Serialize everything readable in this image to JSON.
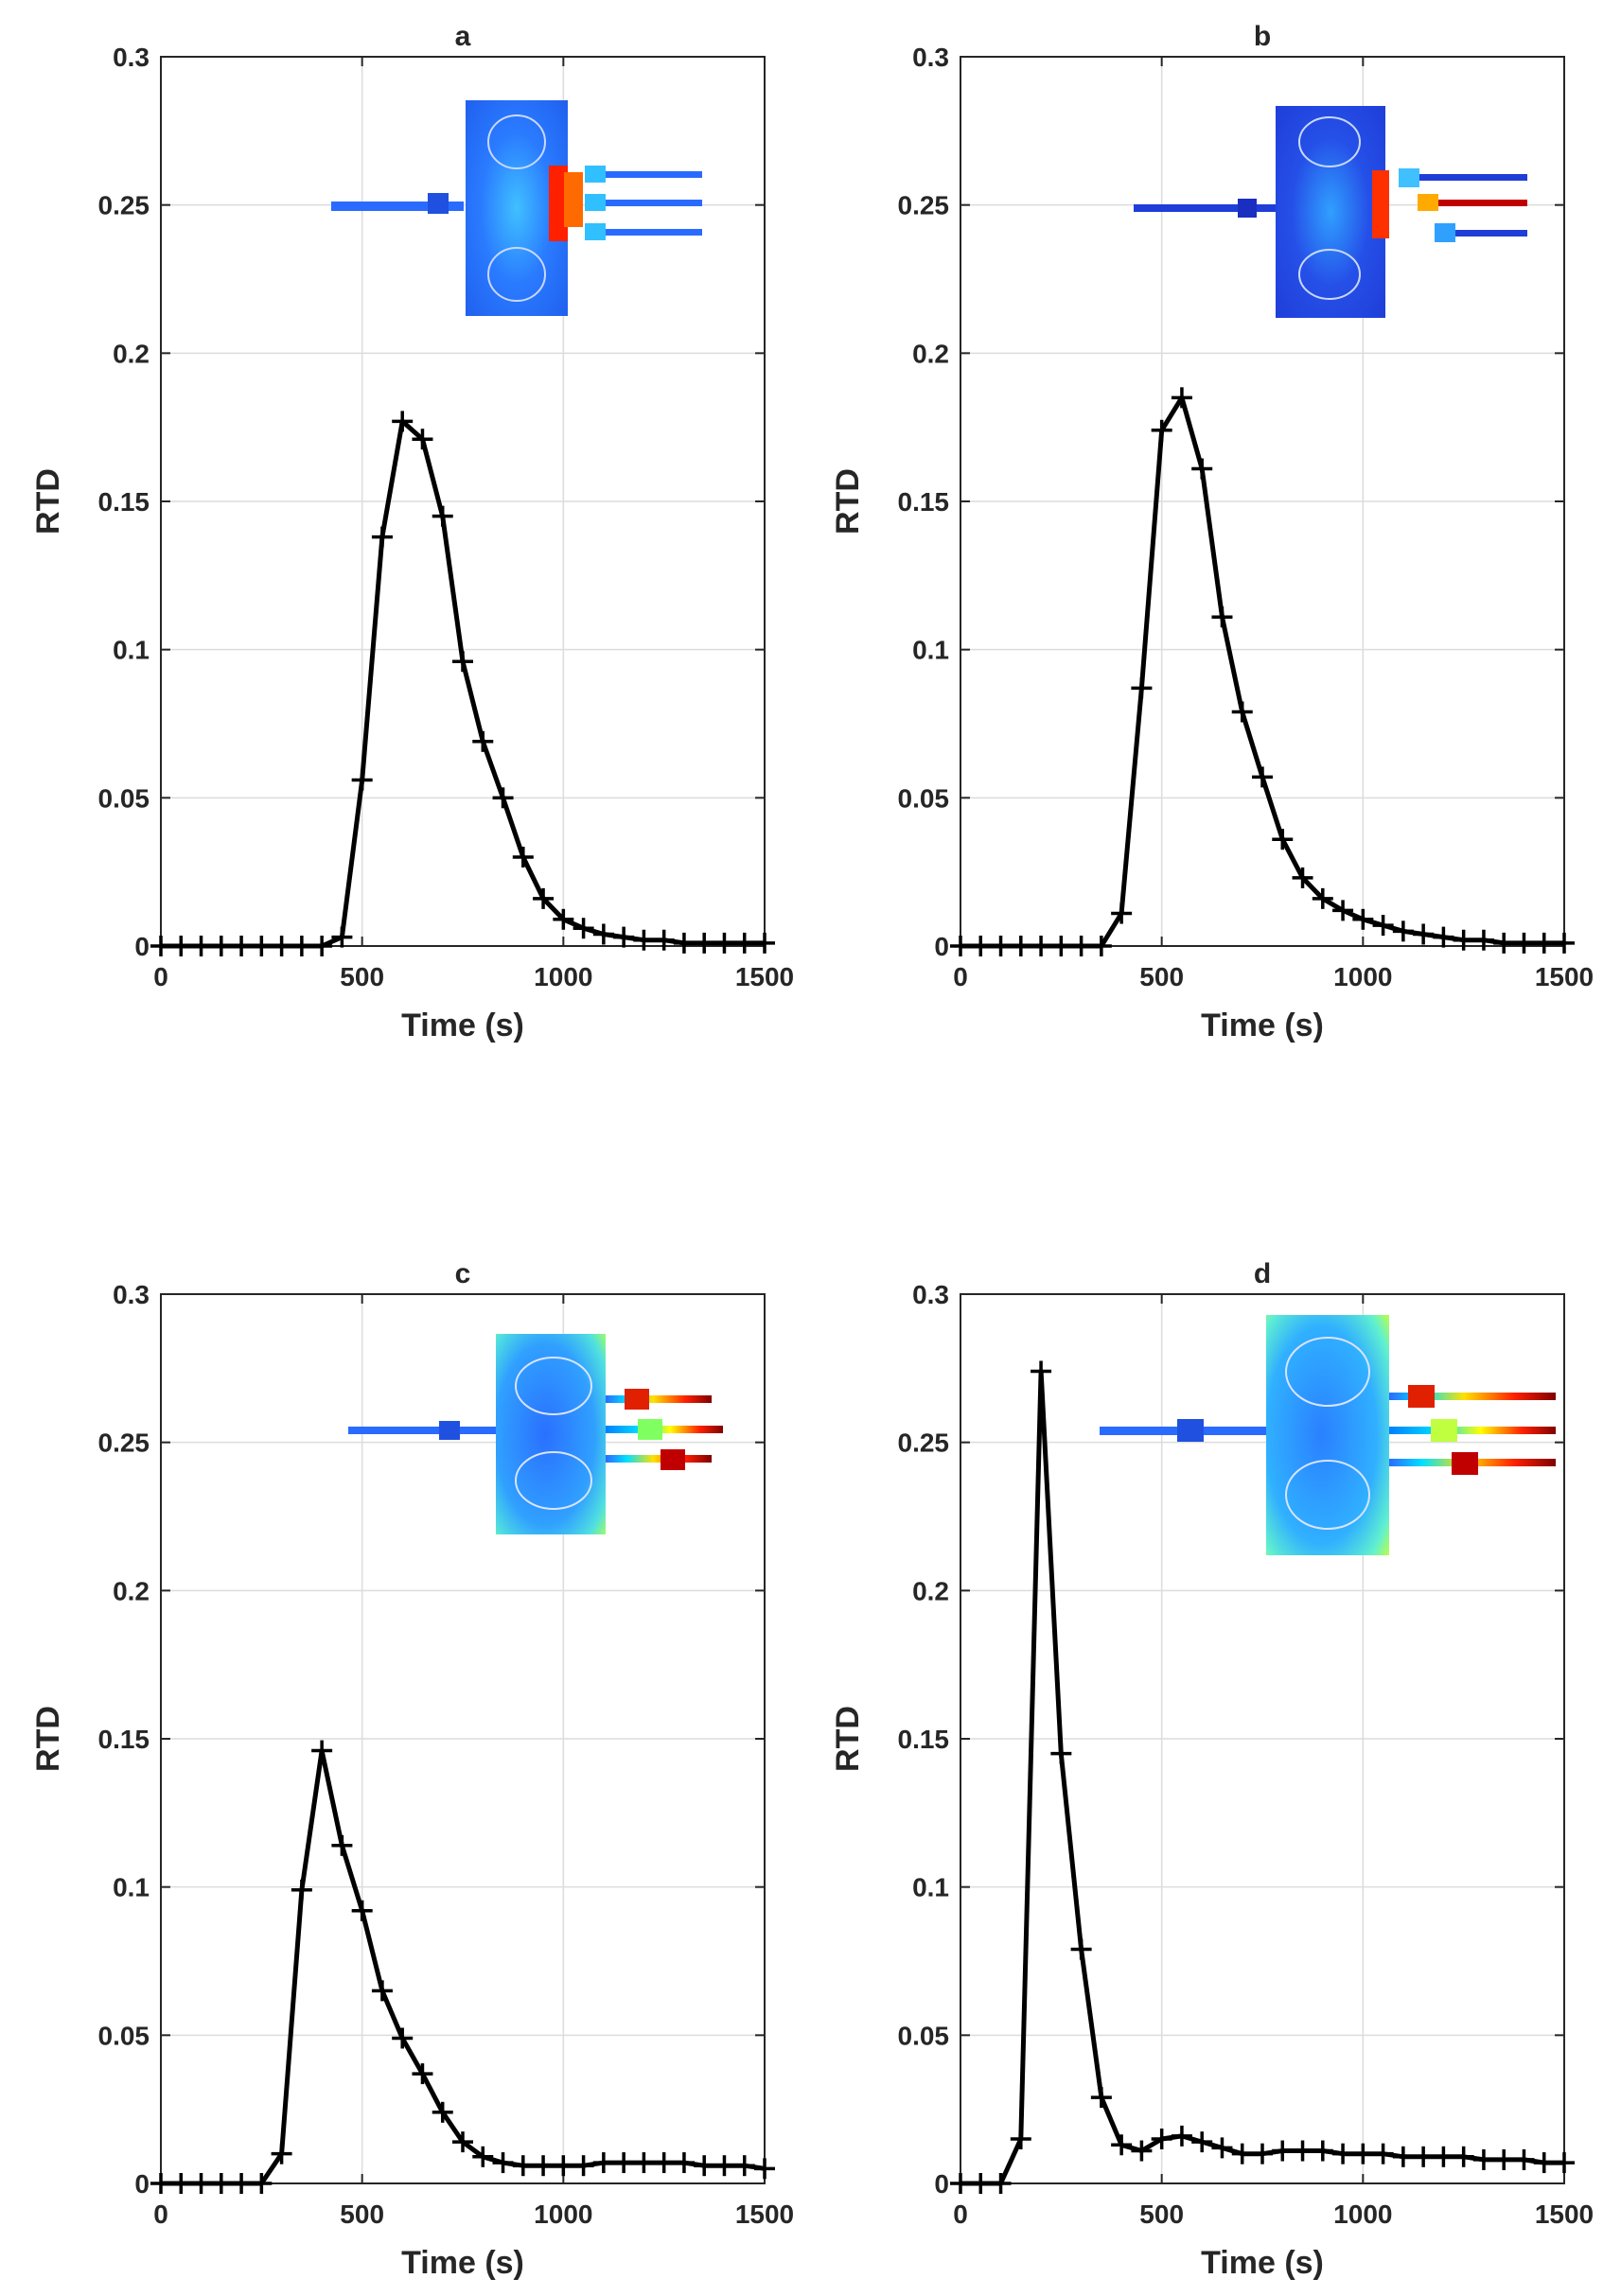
{
  "chart_data": [
    {
      "type": "line",
      "title": "a",
      "xlabel": "Time (s)",
      "ylabel": "RTD",
      "xlim": [
        0,
        1500
      ],
      "ylim": [
        0,
        0.3
      ],
      "xticks": [
        0,
        500,
        1000,
        1500
      ],
      "yticks": [
        0,
        0.05,
        0.1,
        0.15,
        0.2,
        0.25,
        0.3
      ],
      "xtick_labels": [
        "0",
        "500",
        "1000",
        "1500"
      ],
      "ytick_labels": [
        "0",
        "0.05",
        "0.1",
        "0.15",
        "0.2",
        "0.25",
        "0.3"
      ],
      "grid": true,
      "inset": "simulation contour image: inlet pipe on left, rectangular chamber with recirculation vortices, three outlet pipes on right; colour ramp blue to red",
      "series": [
        {
          "name": "RTD",
          "marker": "+",
          "x": [
            0,
            50,
            100,
            150,
            200,
            250,
            300,
            350,
            400,
            450,
            500,
            550,
            600,
            650,
            700,
            750,
            800,
            850,
            900,
            950,
            1000,
            1050,
            1100,
            1150,
            1200,
            1250,
            1300,
            1350,
            1400,
            1450,
            1500
          ],
          "y": [
            0,
            0,
            0,
            0,
            0,
            0,
            0,
            0,
            0,
            0.003,
            0.056,
            0.138,
            0.177,
            0.171,
            0.145,
            0.096,
            0.069,
            0.05,
            0.03,
            0.016,
            0.009,
            0.006,
            0.004,
            0.003,
            0.002,
            0.002,
            0.001,
            0.001,
            0.001,
            0.001,
            0.001
          ]
        }
      ]
    },
    {
      "type": "line",
      "title": "b",
      "xlabel": "Time (s)",
      "ylabel": "RTD",
      "xlim": [
        0,
        1500
      ],
      "ylim": [
        0,
        0.3
      ],
      "xticks": [
        0,
        500,
        1000,
        1500
      ],
      "yticks": [
        0,
        0.05,
        0.1,
        0.15,
        0.2,
        0.25,
        0.3
      ],
      "xtick_labels": [
        "0",
        "500",
        "1000",
        "1500"
      ],
      "ytick_labels": [
        "0",
        "0.05",
        "0.1",
        "0.15",
        "0.2",
        "0.25",
        "0.3"
      ],
      "grid": true,
      "inset": "simulation contour image: inlet pipe on left, rectangular chamber with recirculation vortices, three outlet pipes on right; colour ramp blue to red",
      "series": [
        {
          "name": "RTD",
          "marker": "+",
          "x": [
            0,
            50,
            100,
            150,
            200,
            250,
            300,
            350,
            400,
            450,
            500,
            550,
            600,
            650,
            700,
            750,
            800,
            850,
            900,
            950,
            1000,
            1050,
            1100,
            1150,
            1200,
            1250,
            1300,
            1350,
            1400,
            1450,
            1500
          ],
          "y": [
            0,
            0,
            0,
            0,
            0,
            0,
            0,
            0,
            0.011,
            0.087,
            0.174,
            0.185,
            0.161,
            0.111,
            0.079,
            0.057,
            0.036,
            0.023,
            0.016,
            0.012,
            0.009,
            0.007,
            0.005,
            0.004,
            0.003,
            0.002,
            0.002,
            0.001,
            0.001,
            0.001,
            0.001
          ]
        }
      ]
    },
    {
      "type": "line",
      "title": "c",
      "xlabel": "Time (s)",
      "ylabel": "RTD",
      "xlim": [
        0,
        1500
      ],
      "ylim": [
        0,
        0.3
      ],
      "xticks": [
        0,
        500,
        1000,
        1500
      ],
      "yticks": [
        0,
        0.05,
        0.1,
        0.15,
        0.2,
        0.25,
        0.3
      ],
      "xtick_labels": [
        "0",
        "500",
        "1000",
        "1500"
      ],
      "ytick_labels": [
        "0",
        "0.05",
        "0.1",
        "0.15",
        "0.2",
        "0.25",
        "0.3"
      ],
      "grid": true,
      "inset": "simulation contour image: inlet pipe on left, rectangular chamber with recirculation vortices, three outlet pipes on right; colour ramp blue to red",
      "series": [
        {
          "name": "RTD",
          "marker": "+",
          "x": [
            0,
            50,
            100,
            150,
            200,
            250,
            300,
            350,
            400,
            450,
            500,
            550,
            600,
            650,
            700,
            750,
            800,
            850,
            900,
            950,
            1000,
            1050,
            1100,
            1150,
            1200,
            1250,
            1300,
            1350,
            1400,
            1450,
            1500
          ],
          "y": [
            0,
            0,
            0,
            0,
            0,
            0,
            0.01,
            0.099,
            0.146,
            0.114,
            0.092,
            0.065,
            0.049,
            0.037,
            0.024,
            0.014,
            0.009,
            0.007,
            0.006,
            0.006,
            0.006,
            0.006,
            0.007,
            0.007,
            0.007,
            0.007,
            0.007,
            0.006,
            0.006,
            0.006,
            0.005
          ]
        }
      ]
    },
    {
      "type": "line",
      "title": "d",
      "xlabel": "Time (s)",
      "ylabel": "RTD",
      "xlim": [
        0,
        1500
      ],
      "ylim": [
        0,
        0.3
      ],
      "xticks": [
        0,
        500,
        1000,
        1500
      ],
      "yticks": [
        0,
        0.05,
        0.1,
        0.15,
        0.2,
        0.25,
        0.3
      ],
      "xtick_labels": [
        "0",
        "500",
        "1000",
        "1500"
      ],
      "ytick_labels": [
        "0",
        "0.05",
        "0.1",
        "0.15",
        "0.2",
        "0.25",
        "0.3"
      ],
      "grid": true,
      "inset": "simulation contour image: inlet pipe on left, rectangular chamber with recirculation vortices, three outlet pipes on right; colour ramp blue to red",
      "series": [
        {
          "name": "RTD",
          "marker": "+",
          "x": [
            0,
            50,
            100,
            150,
            200,
            250,
            300,
            350,
            400,
            450,
            500,
            550,
            600,
            650,
            700,
            750,
            800,
            850,
            900,
            950,
            1000,
            1050,
            1100,
            1150,
            1200,
            1250,
            1300,
            1350,
            1400,
            1450,
            1500
          ],
          "y": [
            0,
            0,
            0,
            0.015,
            0.274,
            0.145,
            0.079,
            0.029,
            0.013,
            0.011,
            0.015,
            0.016,
            0.014,
            0.012,
            0.01,
            0.01,
            0.011,
            0.011,
            0.011,
            0.01,
            0.01,
            0.01,
            0.009,
            0.009,
            0.009,
            0.009,
            0.008,
            0.008,
            0.008,
            0.007,
            0.007
          ]
        }
      ]
    }
  ],
  "colors": {
    "series": "#000000",
    "grid": "#dcdcdc",
    "axis": "#262626",
    "inset_jet": [
      "#00007f",
      "#0000ff",
      "#0080ff",
      "#00ffff",
      "#80ff80",
      "#ffff00",
      "#ff8000",
      "#ff0000",
      "#7f0000"
    ]
  }
}
